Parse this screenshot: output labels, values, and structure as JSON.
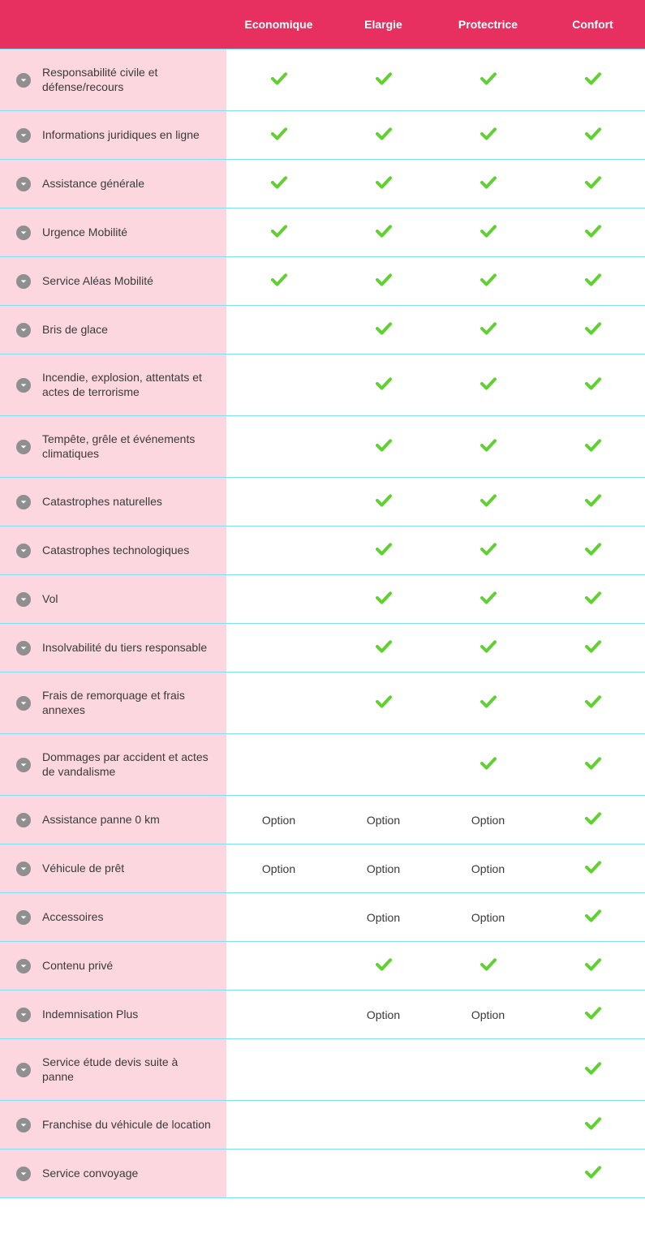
{
  "colors": {
    "header_bg": "#e72f60",
    "header_text": "#ffffff",
    "row_label_bg": "#fcd7df",
    "row_border": "#7fdffb",
    "check_color": "#5fd232",
    "expand_bg": "#8f8f8f",
    "text": "#3a3a3a"
  },
  "fontsize": {
    "header": 14,
    "label": 14,
    "value": 14
  },
  "layout": {
    "label_col_width": 279,
    "value_col_width": 129
  },
  "columns": [
    {
      "key": "economique",
      "label": "Economique"
    },
    {
      "key": "elargie",
      "label": "Elargie"
    },
    {
      "key": "protectrice",
      "label": "Protectrice"
    },
    {
      "key": "confort",
      "label": "Confort"
    }
  ],
  "rows": [
    {
      "label": "Responsabilité civile et défense/recours",
      "values": [
        "check",
        "check",
        "check",
        "check"
      ]
    },
    {
      "label": "Informations juridiques en ligne",
      "values": [
        "check",
        "check",
        "check",
        "check"
      ]
    },
    {
      "label": "Assistance générale",
      "values": [
        "check",
        "check",
        "check",
        "check"
      ]
    },
    {
      "label": "Urgence Mobilité",
      "values": [
        "check",
        "check",
        "check",
        "check"
      ]
    },
    {
      "label": "Service Aléas Mobilité",
      "values": [
        "check",
        "check",
        "check",
        "check"
      ]
    },
    {
      "label": "Bris de glace",
      "values": [
        "",
        "check",
        "check",
        "check"
      ]
    },
    {
      "label": "Incendie, explosion, attentats et actes de terrorisme",
      "values": [
        "",
        "check",
        "check",
        "check"
      ]
    },
    {
      "label": "Tempête, grêle et événements climatiques",
      "values": [
        "",
        "check",
        "check",
        "check"
      ]
    },
    {
      "label": "Catastrophes naturelles",
      "values": [
        "",
        "check",
        "check",
        "check"
      ]
    },
    {
      "label": "Catastrophes technologiques",
      "values": [
        "",
        "check",
        "check",
        "check"
      ]
    },
    {
      "label": "Vol",
      "values": [
        "",
        "check",
        "check",
        "check"
      ]
    },
    {
      "label": "Insolvabilité du tiers responsable",
      "values": [
        "",
        "check",
        "check",
        "check"
      ]
    },
    {
      "label": "Frais de remorquage et frais annexes",
      "values": [
        "",
        "check",
        "check",
        "check"
      ]
    },
    {
      "label": "Dommages par accident et actes de vandalisme",
      "values": [
        "",
        "",
        "check",
        "check"
      ]
    },
    {
      "label": "Assistance panne 0 km",
      "values": [
        "Option",
        "Option",
        "Option",
        "check"
      ]
    },
    {
      "label": "Véhicule de prêt",
      "values": [
        "Option",
        "Option",
        "Option",
        "check"
      ]
    },
    {
      "label": "Accessoires",
      "values": [
        "",
        "Option",
        "Option",
        "check"
      ]
    },
    {
      "label": "Contenu privé",
      "values": [
        "",
        "check",
        "check",
        "check"
      ]
    },
    {
      "label": "Indemnisation Plus",
      "values": [
        "",
        "Option",
        "Option",
        "check"
      ]
    },
    {
      "label": "Service étude devis suite à panne",
      "values": [
        "",
        "",
        "",
        "check"
      ]
    },
    {
      "label": "Franchise du véhicule de location",
      "values": [
        "",
        "",
        "",
        "check"
      ]
    },
    {
      "label": "Service convoyage",
      "values": [
        "",
        "",
        "",
        "check"
      ]
    }
  ]
}
